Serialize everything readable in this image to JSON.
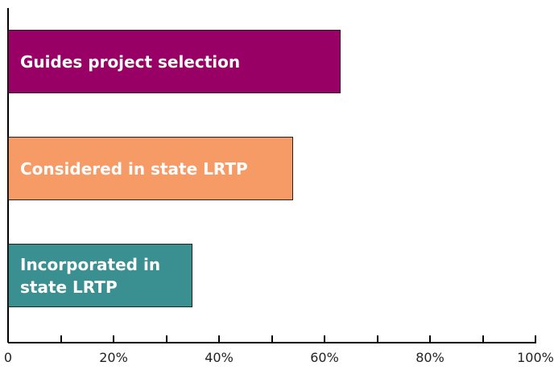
{
  "chart_data": {
    "type": "barh",
    "categories": [
      "Guides project selection",
      "Considered in state LRTP",
      "Incorporated in\nstate LRTP"
    ],
    "values": [
      63,
      54,
      35
    ],
    "colors": [
      "#990066",
      "#f79b66",
      "#3a9091"
    ],
    "xlim": [
      0,
      100
    ],
    "xticks": [
      0,
      {
        "value": 20,
        "label": "20%"
      },
      {
        "value": 40,
        "label": "40%"
      },
      {
        "value": 60,
        "label": "60%"
      },
      {
        "value": 80,
        "label": "80%"
      },
      {
        "value": 100,
        "label": "100%"
      }
    ],
    "xminorticks": [
      10,
      30,
      50,
      70,
      90
    ],
    "grid": false
  }
}
